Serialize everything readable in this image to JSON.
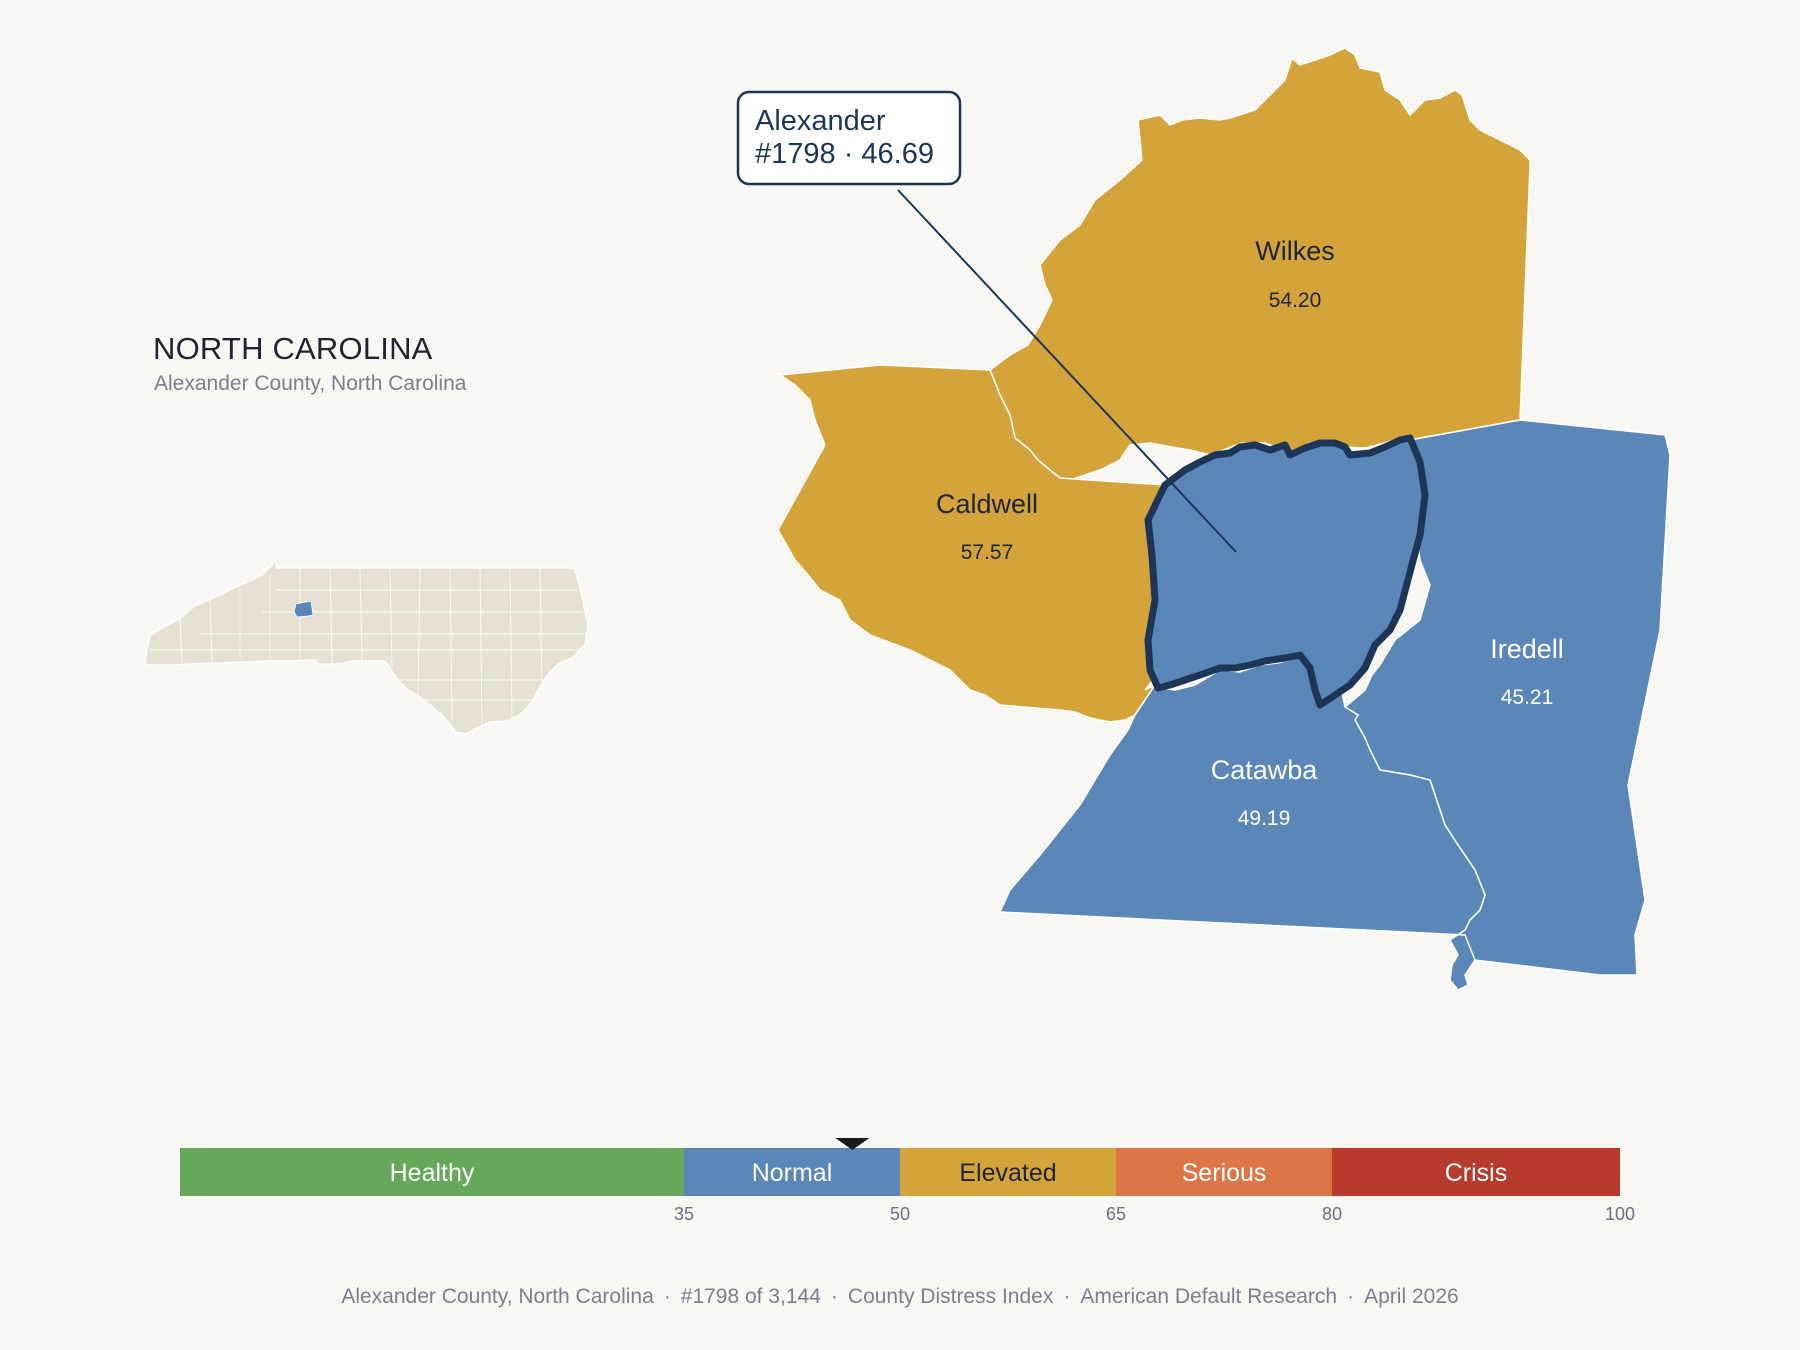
{
  "header": {
    "state_title": "NORTH CAROLINA",
    "subtitle": "Alexander County, North Carolina"
  },
  "callout": {
    "name": "Alexander",
    "rank_score": "#1798 · 46.69"
  },
  "counties": {
    "wilkes": {
      "name": "Wilkes",
      "value": "54.20",
      "fill": "#d4a43b"
    },
    "caldwell": {
      "name": "Caldwell",
      "value": "57.57",
      "fill": "#d4a43b"
    },
    "alexander": {
      "name": "Alexander",
      "value": "46.69",
      "fill": "#5b87b8"
    },
    "iredell": {
      "name": "Iredell",
      "value": "45.21",
      "fill": "#5b87b8"
    },
    "catawba": {
      "name": "Catawba",
      "value": "49.19",
      "fill": "#5b87b8"
    }
  },
  "legend": {
    "categories": [
      {
        "label": "Healthy",
        "color": "#66a85a",
        "text_color": "#ffffff"
      },
      {
        "label": "Normal",
        "color": "#5b87b8",
        "text_color": "#ffffff"
      },
      {
        "label": "Elevated",
        "color": "#d4a43b",
        "text_color": "#1f2430"
      },
      {
        "label": "Serious",
        "color": "#dc7646",
        "text_color": "#ffffff"
      },
      {
        "label": "Crisis",
        "color": "#b83c2c",
        "text_color": "#ffffff"
      }
    ],
    "ticks": [
      "35",
      "50",
      "65",
      "80",
      "100"
    ],
    "current_value": 46.69
  },
  "footer": {
    "county": "Alexander County, North Carolina",
    "rank": "#1798 of 3,144",
    "index": "County Distress Index",
    "source": "American Default Research",
    "date": "April 2026"
  },
  "colors": {
    "highlight_outline": "#1d3557",
    "inset_state": "#e6e0d3",
    "inset_highlight": "#5b87b8",
    "background": "#f8f7f4"
  }
}
